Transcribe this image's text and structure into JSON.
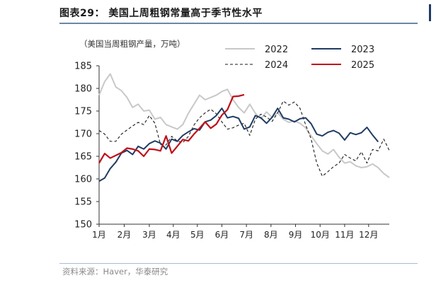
{
  "title": "图表29： 美国上周粗钢常量高于季节性水平",
  "source": "资料来源：Haver，华泰研究",
  "colors": {
    "s2022": "#c8c8c8",
    "s2023": "#1f3b63",
    "s2024": "#1a1a1a",
    "s2025": "#c0101a"
  },
  "chart_data": {
    "type": "line",
    "unit_label": "（美国当周粗钢产量，万吨）",
    "ylim": [
      150,
      185
    ],
    "yticks": [
      150,
      155,
      160,
      165,
      170,
      175,
      180,
      185
    ],
    "xlim": [
      1,
      53
    ],
    "xtick_labels": [
      "1月",
      "2月",
      "3月",
      "4月",
      "5月",
      "6月",
      "7月",
      "8月",
      "9月",
      "10月",
      "11月",
      "12月"
    ],
    "xtick_weeks": [
      1,
      5.5,
      10,
      14.3,
      18.6,
      23,
      27.4,
      31.8,
      36.2,
      40.6,
      45,
      49.3
    ],
    "legend_position": "top-right",
    "series": [
      {
        "name": "2022",
        "style": "solid",
        "values": [
          178.5,
          181.5,
          183.2,
          180.3,
          179.5,
          178.0,
          175.8,
          176.5,
          175.0,
          175.2,
          173.2,
          173.6,
          172.0,
          171.5,
          171.0,
          172.0,
          174.5,
          176.5,
          178.5,
          177.5,
          178.0,
          178.5,
          179.3,
          179.8,
          177.5,
          175.8,
          174.6,
          176.5,
          174.5,
          173.3,
          174.8,
          173.6,
          174.6,
          173.2,
          172.5,
          172.8,
          172.3,
          171.3,
          169.5,
          167.8,
          166.2,
          165.5,
          166.5,
          164.8,
          163.5,
          163.8,
          162.9,
          162.5,
          162.7,
          163.3,
          162.5,
          161.2,
          160.3
        ]
      },
      {
        "name": "2023",
        "style": "solid",
        "values": [
          159.5,
          160.2,
          162.3,
          163.7,
          165.7,
          166.3,
          165.4,
          167.2,
          166.6,
          167.8,
          168.4,
          167.9,
          166.6,
          168.8,
          168.3,
          169.6,
          170.4,
          171.1,
          170.8,
          172.6,
          173.0,
          174.0,
          175.6,
          173.5,
          173.8,
          173.4,
          171.0,
          171.5,
          174.0,
          173.5,
          172.3,
          173.6,
          175.6,
          173.5,
          173.2,
          172.6,
          173.3,
          173.5,
          172.2,
          169.9,
          169.5,
          170.3,
          170.7,
          170.1,
          168.6,
          170.2,
          169.8,
          170.2,
          171.4,
          169.7,
          168.2
        ]
      },
      {
        "name": "2024",
        "style": "dashed",
        "values": [
          170.7,
          169.9,
          168.3,
          168.3,
          169.9,
          170.8,
          171.7,
          172.5,
          172.0,
          174.0,
          172.3,
          167.6,
          167.5,
          169.4,
          168.4,
          168.0,
          169.4,
          171.9,
          173.5,
          174.6,
          175.4,
          174.4,
          172.6,
          171.0,
          171.3,
          171.9,
          172.3,
          169.6,
          173.2,
          174.3,
          173.7,
          172.7,
          174.6,
          177.2,
          176.3,
          177.0,
          175.6,
          172.0,
          168.8,
          163.5,
          160.6,
          161.6,
          162.7,
          163.5,
          165.4,
          164.6,
          164.0,
          166.0,
          163.5,
          166.5,
          166.2,
          168.8,
          166.3
        ]
      },
      {
        "name": "2025",
        "style": "solid",
        "values": [
          163.5,
          165.6,
          164.6,
          165.2,
          165.8,
          166.8,
          166.6,
          166.2,
          165.0,
          166.6,
          166.5,
          166.2,
          169.5,
          165.7,
          167.2,
          168.7,
          168.4,
          169.9,
          171.2,
          172.6,
          171.2,
          172.1,
          174.1,
          175.3,
          178.2,
          178.3,
          178.6
        ]
      }
    ]
  }
}
